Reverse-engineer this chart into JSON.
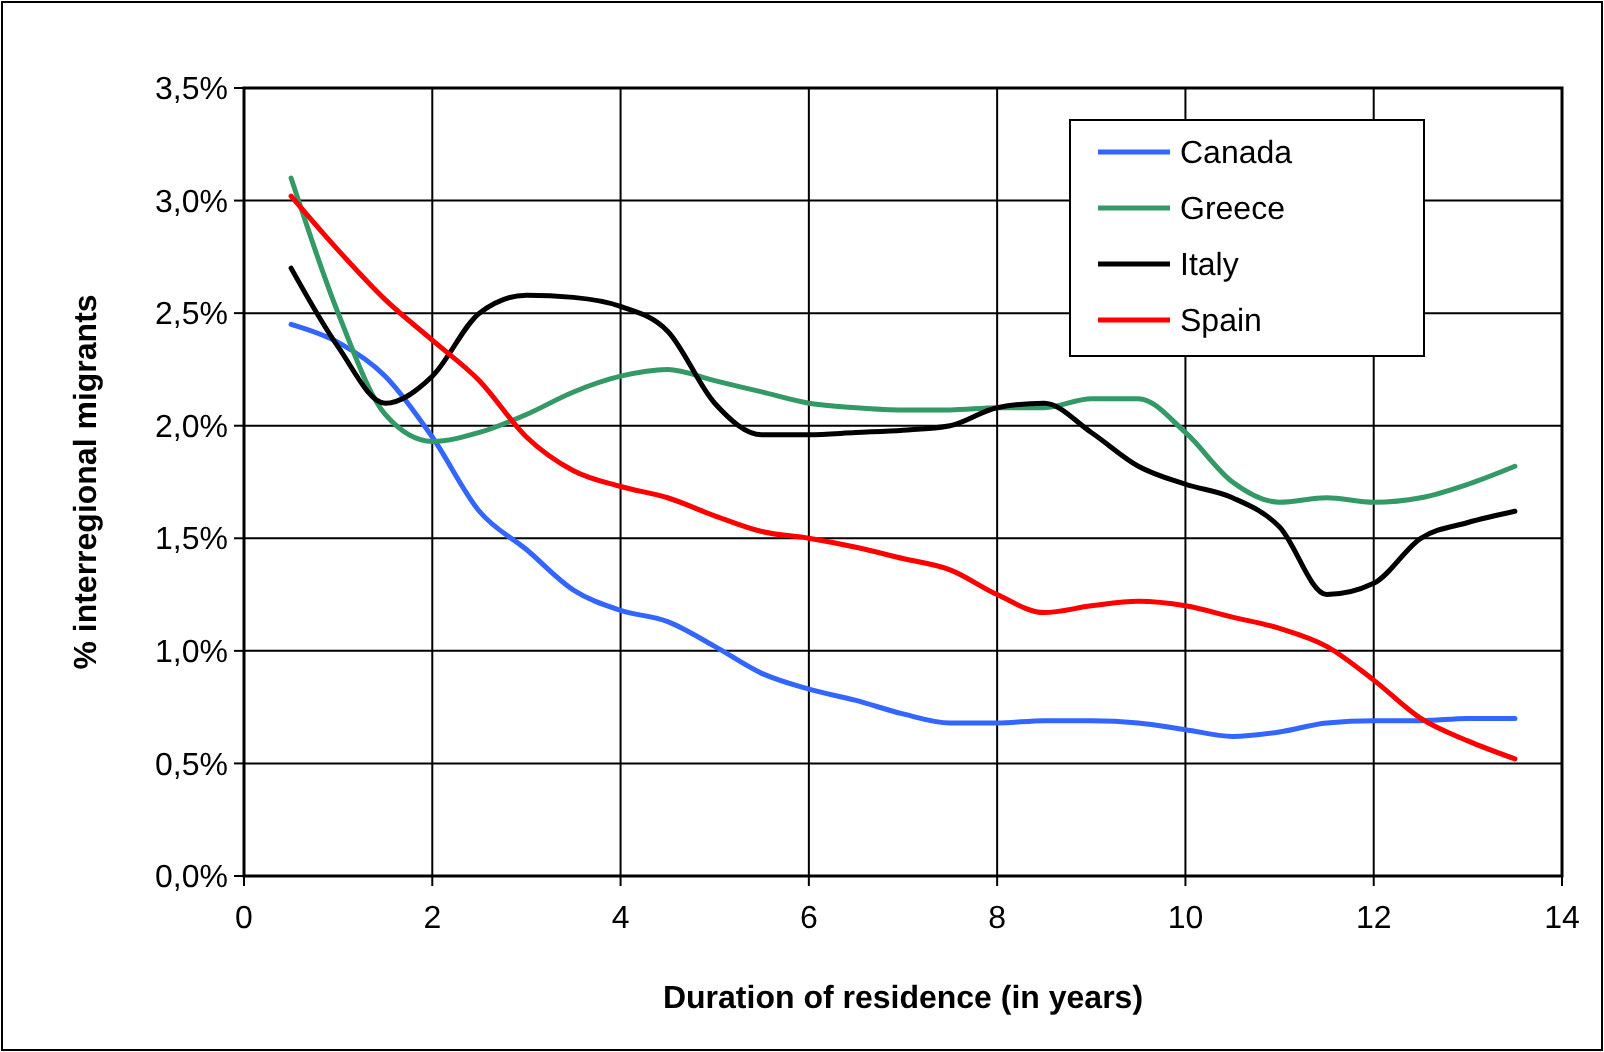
{
  "chart_data": {
    "type": "line",
    "xlabel": "Duration of residence (in years)",
    "ylabel": "% interregional migrants",
    "x": [
      0.5,
      1,
      1.5,
      2,
      2.5,
      3,
      3.5,
      4,
      4.5,
      5,
      5.5,
      6,
      6.5,
      7,
      7.5,
      8,
      8.5,
      9,
      9.5,
      10,
      10.5,
      11,
      11.5,
      12,
      12.5,
      13,
      13.5
    ],
    "series": [
      {
        "name": "Canada",
        "color": "#3366ff",
        "values": [
          2.45,
          2.37,
          2.22,
          1.95,
          1.62,
          1.45,
          1.27,
          1.18,
          1.13,
          1.02,
          0.9,
          0.83,
          0.78,
          0.72,
          0.68,
          0.68,
          0.69,
          0.69,
          0.68,
          0.65,
          0.62,
          0.64,
          0.68,
          0.69,
          0.69,
          0.7,
          0.7
        ]
      },
      {
        "name": "Greece",
        "color": "#339966",
        "values": [
          3.1,
          2.5,
          2.05,
          1.93,
          1.97,
          2.05,
          2.15,
          2.22,
          2.25,
          2.2,
          2.15,
          2.1,
          2.08,
          2.07,
          2.07,
          2.08,
          2.08,
          2.12,
          2.12,
          1.97,
          1.75,
          1.66,
          1.68,
          1.66,
          1.68,
          1.74,
          1.82
        ]
      },
      {
        "name": "Italy",
        "color": "#000000",
        "values": [
          2.7,
          2.35,
          2.1,
          2.22,
          2.5,
          2.58,
          2.57,
          2.53,
          2.42,
          2.1,
          1.96,
          1.96,
          1.97,
          1.98,
          2.0,
          2.08,
          2.1,
          1.97,
          1.82,
          1.74,
          1.68,
          1.55,
          1.25,
          1.3,
          1.5,
          1.57,
          1.62
        ]
      },
      {
        "name": "Spain",
        "color": "#ff0000",
        "values": [
          3.02,
          2.78,
          2.56,
          2.38,
          2.2,
          1.95,
          1.8,
          1.73,
          1.68,
          1.6,
          1.53,
          1.5,
          1.46,
          1.41,
          1.36,
          1.25,
          1.17,
          1.2,
          1.22,
          1.2,
          1.15,
          1.1,
          1.02,
          0.87,
          0.7,
          0.6,
          0.52
        ]
      }
    ],
    "xlim": [
      0,
      14
    ],
    "xticks": [
      0,
      2,
      4,
      6,
      8,
      10,
      12,
      14
    ],
    "ylim": [
      0,
      3.5
    ],
    "yticks": [
      {
        "value": 0,
        "label": "0,0%"
      },
      {
        "value": 0.5,
        "label": "0,5%"
      },
      {
        "value": 1,
        "label": "1,0%"
      },
      {
        "value": 1.5,
        "label": "1,5%"
      },
      {
        "value": 2,
        "label": "2,0%"
      },
      {
        "value": 2.5,
        "label": "2,5%"
      },
      {
        "value": 3,
        "label": "3,0%"
      },
      {
        "value": 3.5,
        "label": "3,5%"
      }
    ],
    "grid": true,
    "legend": "top right",
    "marker": "none",
    "line_style": "solid"
  }
}
